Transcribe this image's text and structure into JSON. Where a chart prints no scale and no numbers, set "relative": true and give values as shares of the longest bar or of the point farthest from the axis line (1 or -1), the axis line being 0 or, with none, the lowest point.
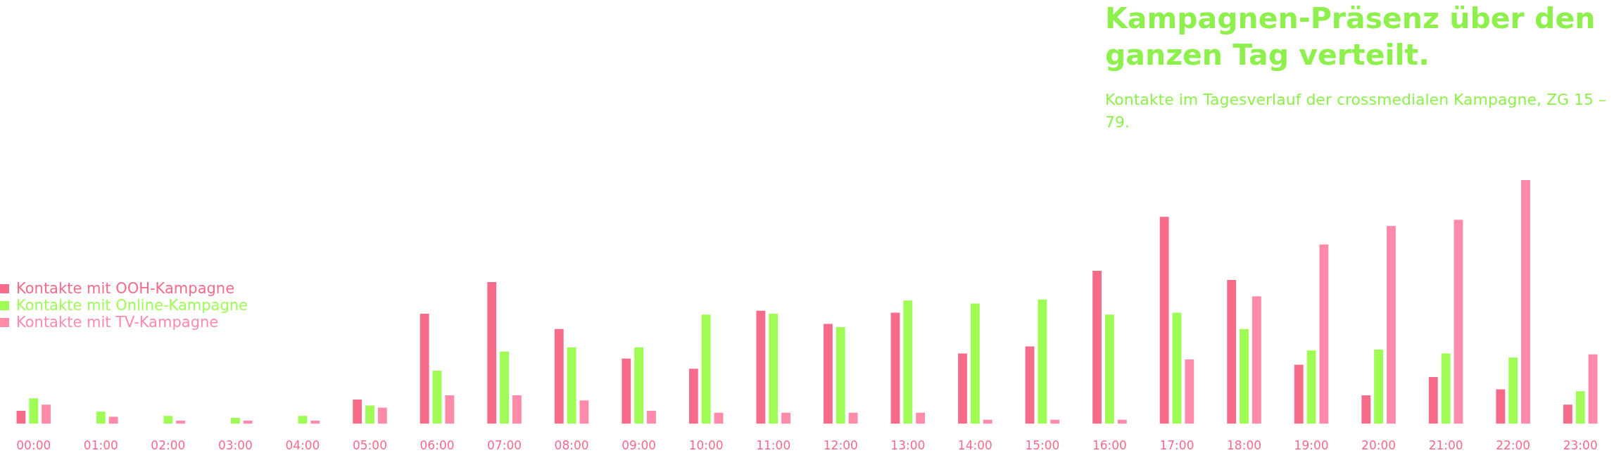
{
  "chart_data": {
    "type": "bar",
    "title": "Kampagnen-Präsenz über den ganzen Tag verteilt.",
    "subtitle": "Kontakte im Tagesverlauf der crossmedialen Kampagne, ZG 15 – 79.",
    "relative": true,
    "legend": "left",
    "categories": [
      "00:00",
      "01:00",
      "02:00",
      "03:00",
      "04:00",
      "05:00",
      "06:00",
      "07:00",
      "08:00",
      "09:00",
      "10:00",
      "11:00",
      "12:00",
      "13:00",
      "14:00",
      "15:00",
      "16:00",
      "17:00",
      "18:00",
      "19:00",
      "20:00",
      "21:00",
      "22:00",
      "23:00"
    ],
    "series": [
      {
        "name": "Kontakte mit OOH-Kampagne",
        "color": "#f76b8a",
        "values": [
          0.054,
          0,
          0,
          0,
          0,
          0.1,
          0.452,
          0.582,
          0.389,
          0.268,
          0.226,
          0.464,
          0.41,
          0.456,
          0.289,
          0.318,
          0.628,
          0.849,
          0.59,
          0.243,
          0.117,
          0.192,
          0.142,
          0.079
        ]
      },
      {
        "name": "Kontakte mit Online-Kampagne",
        "color": "#9efc55",
        "values": [
          0.105,
          0.05,
          0.033,
          0.025,
          0.033,
          0.075,
          0.218,
          0.297,
          0.314,
          0.314,
          0.448,
          0.452,
          0.397,
          0.506,
          0.494,
          0.51,
          0.448,
          0.456,
          0.389,
          0.301,
          0.305,
          0.289,
          0.272,
          0.134
        ]
      },
      {
        "name": "Kontakte mit TV-Kampagne",
        "color": "#ff8aaa",
        "values": [
          0.079,
          0.029,
          0.013,
          0.013,
          0.013,
          0.067,
          0.117,
          0.117,
          0.096,
          0.054,
          0.046,
          0.046,
          0.046,
          0.046,
          0.017,
          0.017,
          0.017,
          0.264,
          0.523,
          0.736,
          0.812,
          0.837,
          1,
          0.285
        ]
      }
    ]
  }
}
